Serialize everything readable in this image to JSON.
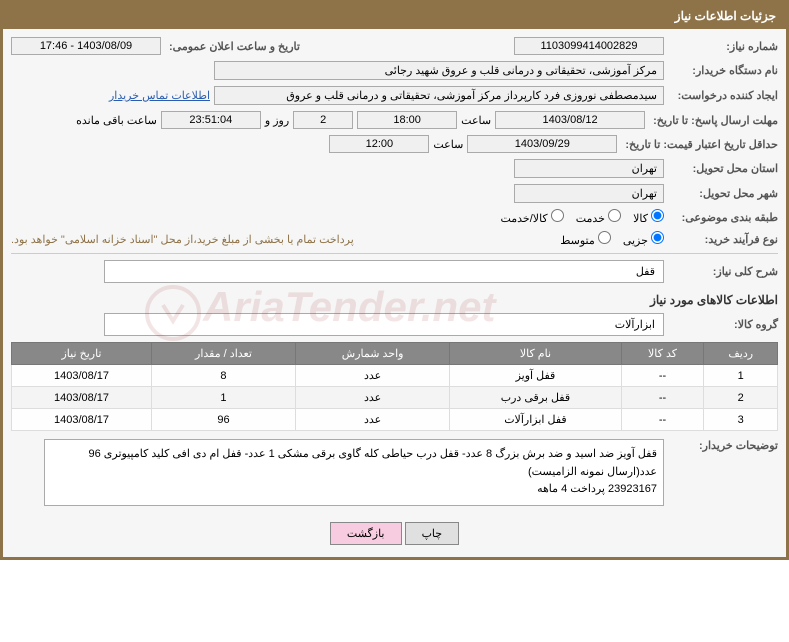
{
  "header": {
    "title": "جزئیات اطلاعات نیاز"
  },
  "fields": {
    "need_number_label": "شماره نیاز:",
    "need_number": "1103099414002829",
    "announce_date_label": "تاریخ و ساعت اعلان عمومی:",
    "announce_date": "1403/08/09 - 17:46",
    "buyer_device_label": "نام دستگاه خریدار:",
    "buyer_device": "مرکز آموزشی، تحقیقاتی و درمانی قلب و عروق شهید رجائی",
    "requester_label": "ایجاد کننده درخواست:",
    "requester": "سیدمصطفی نوروزی فرد کارپرداز مرکز آموزشی، تحقیقاتی و درمانی قلب و عروق",
    "contact_link": "اطلاعات تماس خریدار",
    "deadline_send_label": "مهلت ارسال پاسخ: تا تاریخ:",
    "deadline_send_date": "1403/08/12",
    "time_label": "ساعت",
    "deadline_send_time": "18:00",
    "days_count": "2",
    "days_and": "روز و",
    "countdown": "23:51:04",
    "remaining": "ساعت باقی مانده",
    "validity_label": "حداقل تاریخ اعتبار قیمت: تا تاریخ:",
    "validity_date": "1403/09/29",
    "validity_time": "12:00",
    "province_label": "استان محل تحویل:",
    "province": "تهران",
    "city_label": "شهر محل تحویل:",
    "city": "تهران",
    "category_label": "طبقه بندی موضوعی:",
    "cat_goods": "کالا",
    "cat_service": "خدمت",
    "cat_both": "کالا/خدمت",
    "process_label": "نوع فرآیند خرید:",
    "proc_partial": "جزیی",
    "proc_medium": "متوسط",
    "payment_note": "پرداخت تمام یا بخشی از مبلغ خرید،از محل \"اسناد خزانه اسلامی\" خواهد بود.",
    "summary_label": "شرح کلی نیاز:",
    "summary": "قفل",
    "goods_section": "اطلاعات کالاهای مورد نیاز",
    "group_label": "گروه کالا:",
    "group": "ابزارآلات",
    "explain_label": "توضیحات خریدار:",
    "explain": "قفل آویز ضد اسید و ضد برش بزرگ 8 عدد- قفل درب حیاطی کله گاوی برقی مشکی 1 عدد- قفل ام دی افی کلید کامپیوتری 96 عدد(ارسال نمونه الزامیست)\n23923167 پرداخت 4 ماهه"
  },
  "table": {
    "headers": [
      "ردیف",
      "کد کالا",
      "نام کالا",
      "واحد شمارش",
      "تعداد / مقدار",
      "تاریخ نیاز"
    ],
    "rows": [
      [
        "1",
        "--",
        "قفل آویز",
        "عدد",
        "8",
        "1403/08/17"
      ],
      [
        "2",
        "--",
        "قفل برقی درب",
        "عدد",
        "1",
        "1403/08/17"
      ],
      [
        "3",
        "--",
        "قفل ابزارآلات",
        "عدد",
        "96",
        "1403/08/17"
      ]
    ]
  },
  "buttons": {
    "print": "چاپ",
    "back": "بازگشت"
  }
}
